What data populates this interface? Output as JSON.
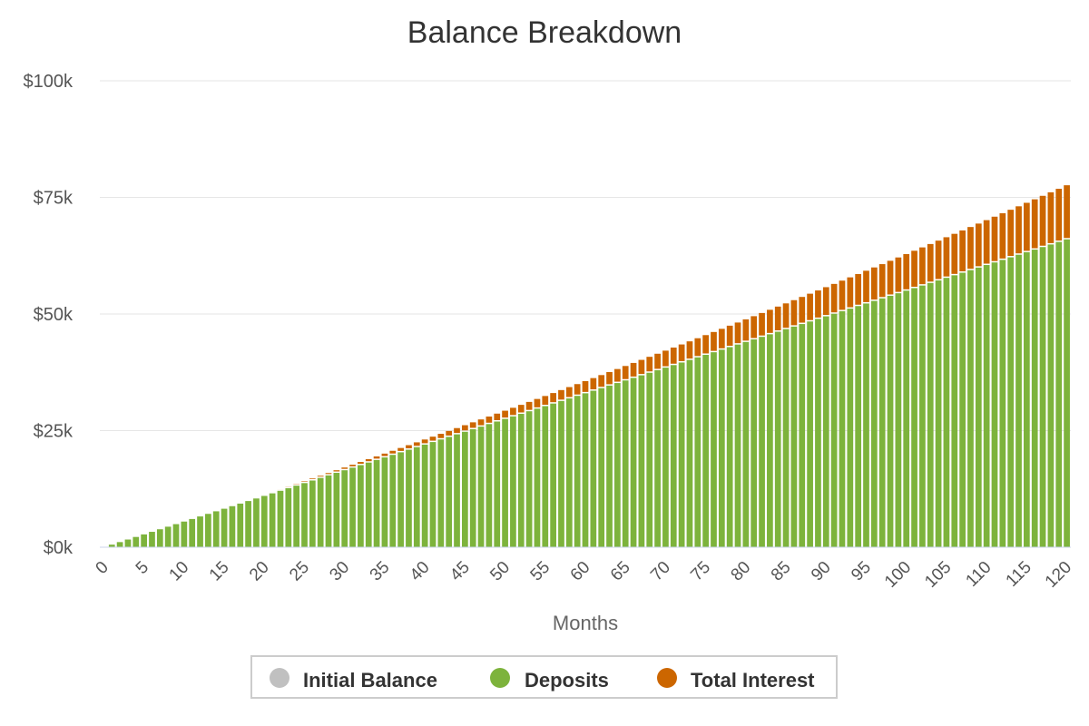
{
  "chart_data": {
    "type": "bar",
    "stacked": true,
    "title": "Balance Breakdown",
    "xlabel": "Months",
    "ylabel": "",
    "ylim": [
      0,
      100000
    ],
    "yticks": [
      "$0k",
      "$25k",
      "$50k",
      "$75k",
      "$100k"
    ],
    "ytick_values": [
      0,
      25000,
      50000,
      75000,
      100000
    ],
    "xticks": [
      "0",
      "5",
      "10",
      "15",
      "20",
      "25",
      "30",
      "35",
      "40",
      "45",
      "50",
      "55",
      "60",
      "65",
      "70",
      "75",
      "80",
      "85",
      "90",
      "95",
      "100",
      "105",
      "110",
      "115",
      "120"
    ],
    "months": {
      "start": 0,
      "end": 120
    },
    "grid": true,
    "legend_position": "bottom",
    "series": [
      {
        "name": "Initial Balance",
        "color": "#c0c0c0",
        "values_description": "0 for all months",
        "value": 0
      },
      {
        "name": "Deposits",
        "color": "#7db33c",
        "monthly_deposit": 550
      },
      {
        "name": "Total Interest",
        "color": "#cc6600",
        "final_total_balance": 77600
      }
    ]
  }
}
